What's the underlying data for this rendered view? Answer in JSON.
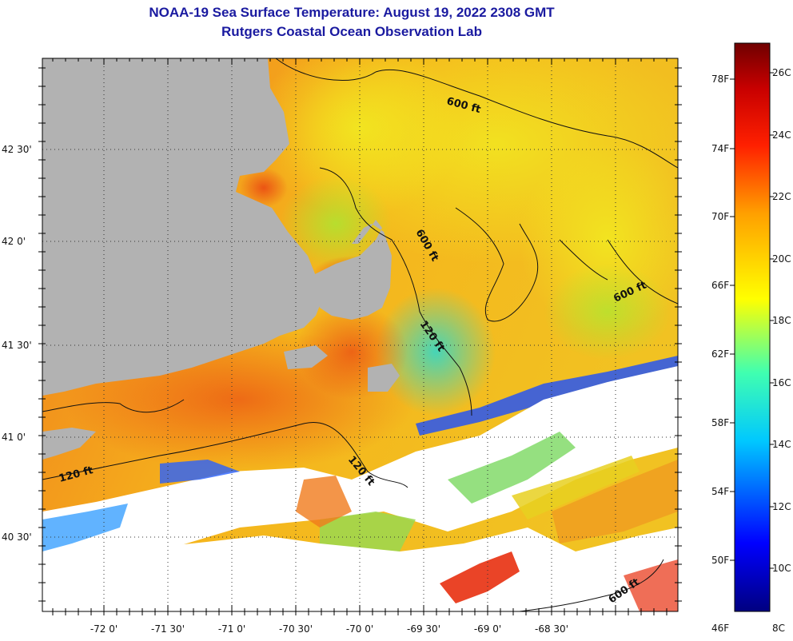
{
  "header": {
    "title": "NOAA-19 Sea Surface Temperature:  August 19, 2022 2308 GMT",
    "subtitle": "Rutgers Coastal Ocean Observation Lab"
  },
  "axes": {
    "longitude_labels": [
      "-72 0'",
      "-71 30'",
      "-71 0'",
      "-70 30'",
      "-70 0'",
      "-69 30'",
      "-69 0'",
      "-68 30'"
    ],
    "latitude_labels": [
      "42 30'",
      "42 0'",
      "41 30'",
      "41 0'",
      "40 30'"
    ]
  },
  "colorbar": {
    "fahrenheit_labels": [
      "78F",
      "74F",
      "70F",
      "66F",
      "62F",
      "58F",
      "54F",
      "50F",
      "46F"
    ],
    "celsius_labels": [
      "26C",
      "24C",
      "22C",
      "20C",
      "18C",
      "16C",
      "14C",
      "12C",
      "10C",
      "8C"
    ],
    "min_c": 8,
    "max_c": 27
  },
  "contours": {
    "labels": [
      "600 ft",
      "600 ft",
      "600 ft",
      "600 ft",
      "120 ft",
      "120 ft",
      "120 ft"
    ]
  },
  "colors": {
    "land": "#b2b2b2",
    "title": "#1a1aa0",
    "no_data": "#ffffff"
  }
}
